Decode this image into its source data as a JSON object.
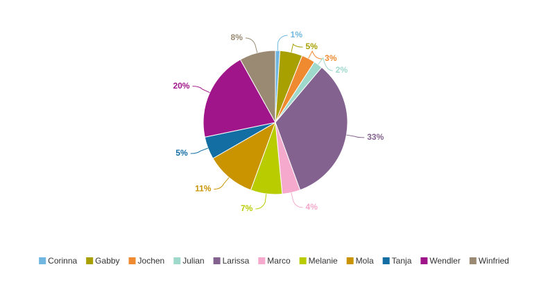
{
  "chart_data": {
    "type": "pie",
    "categories": [
      "Corinna",
      "Gabby",
      "Jochen",
      "Julian",
      "Larissa",
      "Marco",
      "Melanie",
      "Mola",
      "Tanja",
      "Wendler",
      "Winfried"
    ],
    "values": [
      1,
      5,
      3,
      2,
      33,
      4,
      7,
      11,
      5,
      20,
      8
    ],
    "value_labels": [
      "1%",
      "5%",
      "3%",
      "2%",
      "33%",
      "4%",
      "7%",
      "11%",
      "5%",
      "20%",
      "8%"
    ],
    "colors": [
      "#6fb7e0",
      "#a89f00",
      "#f08a30",
      "#9ed9cc",
      "#84628f",
      "#f5a9cc",
      "#b8cc00",
      "#c99400",
      "#136ea3",
      "#a0168a",
      "#9a8a73"
    ],
    "legend": "bottom"
  }
}
